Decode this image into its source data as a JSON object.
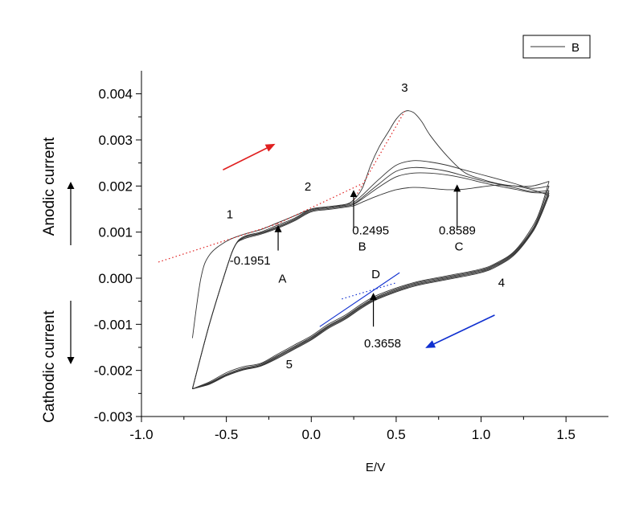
{
  "chart_data": {
    "type": "line",
    "xlabel": "E/V",
    "ylabel_anodic": "Anodic current",
    "ylabel_cathodic": "Cathodic current",
    "xlim": [
      -1.0,
      1.75
    ],
    "ylim": [
      -0.003,
      0.0045
    ],
    "xticks": [
      -1.0,
      -0.5,
      0.0,
      0.5,
      1.0,
      1.5
    ],
    "xtick_labels": [
      "-1.0",
      "-0.5",
      "0.0",
      "0.5",
      "1.0",
      "1.5"
    ],
    "yticks": [
      -0.003,
      -0.002,
      -0.001,
      0.0,
      0.001,
      0.002,
      0.003,
      0.004
    ],
    "ytick_labels": [
      "-0.003",
      "-0.002",
      "-0.001",
      "0.000",
      "0.001",
      "0.002",
      "0.003",
      "0.004"
    ],
    "legend": {
      "entries": [
        "B"
      ],
      "placement": "top-right"
    },
    "colors": {
      "curve": "#333333",
      "forward_arrow": "#e02020",
      "reverse_arrow": "#1030d0",
      "anodic_tangent": "#e02020",
      "cathodic_tangent": "#1030d0"
    },
    "series": [
      {
        "cycle": 1,
        "forward": [
          [
            -0.7,
            -0.0013
          ],
          [
            -0.65,
            0.0
          ],
          [
            -0.6,
            0.0005
          ],
          [
            -0.5,
            0.0008
          ],
          [
            -0.4,
            0.00095
          ],
          [
            -0.3,
            0.00105
          ],
          [
            -0.2,
            0.0012
          ],
          [
            -0.1,
            0.00135
          ],
          [
            0.0,
            0.0015
          ],
          [
            0.1,
            0.00155
          ],
          [
            0.2,
            0.0016
          ],
          [
            0.25,
            0.0017
          ],
          [
            0.3,
            0.00195
          ],
          [
            0.35,
            0.00245
          ],
          [
            0.4,
            0.00285
          ],
          [
            0.45,
            0.00315
          ],
          [
            0.5,
            0.00345
          ],
          [
            0.55,
            0.00362
          ],
          [
            0.6,
            0.0036
          ],
          [
            0.65,
            0.0034
          ],
          [
            0.7,
            0.0031
          ],
          [
            0.8,
            0.00265
          ],
          [
            0.9,
            0.0023
          ],
          [
            1.0,
            0.00215
          ],
          [
            1.1,
            0.00205
          ],
          [
            1.2,
            0.002
          ],
          [
            1.3,
            0.002
          ],
          [
            1.4,
            0.0021
          ]
        ],
        "reverse": [
          [
            1.4,
            0.0021
          ],
          [
            1.35,
            0.0015
          ],
          [
            1.3,
            0.0011
          ],
          [
            1.2,
            0.0006
          ],
          [
            1.1,
            0.00035
          ],
          [
            1.0,
            0.0002
          ],
          [
            0.8,
            5e-05
          ],
          [
            0.6,
            -0.0001
          ],
          [
            0.4,
            -0.00035
          ],
          [
            0.3,
            -0.00055
          ],
          [
            0.2,
            -0.0008
          ],
          [
            0.1,
            -0.001
          ],
          [
            0.0,
            -0.00125
          ],
          [
            -0.1,
            -0.00145
          ],
          [
            -0.2,
            -0.00165
          ],
          [
            -0.3,
            -0.00185
          ],
          [
            -0.4,
            -0.00192
          ],
          [
            -0.5,
            -0.00205
          ],
          [
            -0.6,
            -0.00225
          ],
          [
            -0.7,
            -0.0024
          ]
        ]
      },
      {
        "cycle": 2,
        "forward": [
          [
            -0.7,
            -0.0024
          ],
          [
            -0.6,
            -0.001
          ],
          [
            -0.5,
            0.0002
          ],
          [
            -0.45,
            0.0007
          ],
          [
            -0.4,
            0.0009
          ],
          [
            -0.3,
            0.001
          ],
          [
            -0.2,
            0.00115
          ],
          [
            -0.1,
            0.0013
          ],
          [
            0.0,
            0.0015
          ],
          [
            0.1,
            0.00155
          ],
          [
            0.2,
            0.0016
          ],
          [
            0.25,
            0.00165
          ],
          [
            0.3,
            0.0018
          ],
          [
            0.4,
            0.00215
          ],
          [
            0.5,
            0.00245
          ],
          [
            0.6,
            0.00255
          ],
          [
            0.7,
            0.00252
          ],
          [
            0.8,
            0.00245
          ],
          [
            0.9,
            0.00235
          ],
          [
            1.0,
            0.00225
          ],
          [
            1.1,
            0.00215
          ],
          [
            1.2,
            0.00205
          ],
          [
            1.3,
            0.00195
          ],
          [
            1.4,
            0.002
          ]
        ],
        "reverse": [
          [
            1.4,
            0.002
          ],
          [
            1.35,
            0.00145
          ],
          [
            1.3,
            0.00105
          ],
          [
            1.2,
            0.00058
          ],
          [
            1.1,
            0.00033
          ],
          [
            1.0,
            0.00018
          ],
          [
            0.8,
            3e-05
          ],
          [
            0.6,
            -0.00012
          ],
          [
            0.4,
            -0.00038
          ],
          [
            0.3,
            -0.00058
          ],
          [
            0.2,
            -0.00083
          ],
          [
            0.1,
            -0.00103
          ],
          [
            0.0,
            -0.00128
          ],
          [
            -0.1,
            -0.00148
          ],
          [
            -0.2,
            -0.00168
          ],
          [
            -0.3,
            -0.00187
          ],
          [
            -0.4,
            -0.00195
          ],
          [
            -0.5,
            -0.00208
          ],
          [
            -0.6,
            -0.00227
          ],
          [
            -0.7,
            -0.0024
          ]
        ]
      },
      {
        "cycle": 3,
        "forward": [
          [
            -0.7,
            -0.0024
          ],
          [
            -0.6,
            -0.001
          ],
          [
            -0.5,
            0.0002
          ],
          [
            -0.45,
            0.0007
          ],
          [
            -0.4,
            0.00088
          ],
          [
            -0.3,
            0.00098
          ],
          [
            -0.2,
            0.00112
          ],
          [
            -0.1,
            0.00128
          ],
          [
            0.0,
            0.00148
          ],
          [
            0.1,
            0.00153
          ],
          [
            0.2,
            0.00158
          ],
          [
            0.25,
            0.00162
          ],
          [
            0.3,
            0.00175
          ],
          [
            0.4,
            0.00205
          ],
          [
            0.5,
            0.00232
          ],
          [
            0.6,
            0.0024
          ],
          [
            0.7,
            0.00238
          ],
          [
            0.8,
            0.00232
          ],
          [
            0.9,
            0.00222
          ],
          [
            1.0,
            0.00212
          ],
          [
            1.1,
            0.00204
          ],
          [
            1.2,
            0.00196
          ],
          [
            1.3,
            0.00188
          ],
          [
            1.4,
            0.0019
          ]
        ],
        "reverse": [
          [
            1.4,
            0.0019
          ],
          [
            1.35,
            0.0014
          ],
          [
            1.3,
            0.00102
          ],
          [
            1.2,
            0.00056
          ],
          [
            1.1,
            0.00031
          ],
          [
            1.0,
            0.00016
          ],
          [
            0.8,
            1e-05
          ],
          [
            0.6,
            -0.00014
          ],
          [
            0.4,
            -0.0004
          ],
          [
            0.3,
            -0.0006
          ],
          [
            0.2,
            -0.00085
          ],
          [
            0.1,
            -0.00105
          ],
          [
            0.0,
            -0.0013
          ],
          [
            -0.1,
            -0.0015
          ],
          [
            -0.2,
            -0.0017
          ],
          [
            -0.3,
            -0.00189
          ],
          [
            -0.4,
            -0.00197
          ],
          [
            -0.5,
            -0.0021
          ],
          [
            -0.6,
            -0.00228
          ],
          [
            -0.7,
            -0.0024
          ]
        ]
      },
      {
        "cycle": 4,
        "forward": [
          [
            -0.7,
            -0.0024
          ],
          [
            -0.6,
            -0.001
          ],
          [
            -0.5,
            0.0002
          ],
          [
            -0.45,
            0.0007
          ],
          [
            -0.4,
            0.00087
          ],
          [
            -0.3,
            0.00097
          ],
          [
            -0.2,
            0.0011
          ],
          [
            -0.1,
            0.00126
          ],
          [
            0.0,
            0.00146
          ],
          [
            0.1,
            0.00151
          ],
          [
            0.2,
            0.00156
          ],
          [
            0.25,
            0.0016
          ],
          [
            0.3,
            0.00172
          ],
          [
            0.4,
            0.00198
          ],
          [
            0.5,
            0.0022
          ],
          [
            0.6,
            0.00228
          ],
          [
            0.7,
            0.00228
          ],
          [
            0.8,
            0.00224
          ],
          [
            0.9,
            0.00217
          ],
          [
            1.0,
            0.00208
          ],
          [
            1.1,
            0.002
          ],
          [
            1.2,
            0.00193
          ],
          [
            1.3,
            0.00186
          ],
          [
            1.4,
            0.00185
          ]
        ],
        "reverse": [
          [
            1.4,
            0.00185
          ],
          [
            1.35,
            0.00137
          ],
          [
            1.3,
            0.001
          ],
          [
            1.2,
            0.00054
          ],
          [
            1.1,
            0.00029
          ],
          [
            1.0,
            0.00014
          ],
          [
            0.8,
            -1e-05
          ],
          [
            0.6,
            -0.00016
          ],
          [
            0.4,
            -0.00042
          ],
          [
            0.3,
            -0.00062
          ],
          [
            0.2,
            -0.00087
          ],
          [
            0.1,
            -0.00107
          ],
          [
            0.0,
            -0.00132
          ],
          [
            -0.1,
            -0.00152
          ],
          [
            -0.2,
            -0.00172
          ],
          [
            -0.3,
            -0.0019
          ],
          [
            -0.4,
            -0.00198
          ],
          [
            -0.5,
            -0.00211
          ],
          [
            -0.6,
            -0.00229
          ],
          [
            -0.7,
            -0.0024
          ]
        ]
      },
      {
        "cycle": 5,
        "forward": [
          [
            -0.7,
            -0.0024
          ],
          [
            -0.6,
            -0.001
          ],
          [
            -0.5,
            0.0002
          ],
          [
            -0.45,
            0.0007
          ],
          [
            -0.4,
            0.00085
          ],
          [
            -0.3,
            0.00095
          ],
          [
            -0.2,
            0.00108
          ],
          [
            -0.1,
            0.00124
          ],
          [
            0.0,
            0.00144
          ],
          [
            0.1,
            0.00149
          ],
          [
            0.2,
            0.00154
          ],
          [
            0.25,
            0.00157
          ],
          [
            0.3,
            0.00165
          ],
          [
            0.4,
            0.0018
          ],
          [
            0.5,
            0.00192
          ],
          [
            0.6,
            0.00197
          ],
          [
            0.7,
            0.00195
          ],
          [
            0.8,
            0.00192
          ],
          [
            0.9,
            0.00193
          ],
          [
            1.0,
            0.00198
          ],
          [
            1.1,
            0.00202
          ],
          [
            1.2,
            0.002
          ],
          [
            1.3,
            0.00192
          ],
          [
            1.4,
            0.0018
          ]
        ],
        "reverse": [
          [
            1.4,
            0.0018
          ],
          [
            1.35,
            0.00134
          ],
          [
            1.3,
            0.00098
          ],
          [
            1.2,
            0.00052
          ],
          [
            1.1,
            0.00027
          ],
          [
            1.0,
            0.00012
          ],
          [
            0.8,
            -3e-05
          ],
          [
            0.6,
            -0.00018
          ],
          [
            0.4,
            -0.00044
          ],
          [
            0.3,
            -0.00064
          ],
          [
            0.2,
            -0.00089
          ],
          [
            0.1,
            -0.00109
          ],
          [
            0.0,
            -0.00134
          ],
          [
            -0.1,
            -0.00154
          ],
          [
            -0.2,
            -0.00174
          ],
          [
            -0.3,
            -0.00191
          ],
          [
            -0.4,
            -0.00199
          ],
          [
            -0.5,
            -0.00212
          ],
          [
            -0.6,
            -0.0023
          ],
          [
            -0.7,
            -0.0024
          ]
        ]
      }
    ],
    "tangents": [
      {
        "color": "red",
        "style": "dotted",
        "points": [
          [
            -0.9,
            0.00035
          ],
          [
            -0.2,
            0.00118
          ]
        ]
      },
      {
        "color": "red",
        "style": "dotted",
        "points": [
          [
            -0.2,
            0.00118
          ],
          [
            0.3,
            0.00205
          ]
        ]
      },
      {
        "color": "red",
        "style": "dotted",
        "points": [
          [
            0.25,
            0.0017
          ],
          [
            0.55,
            0.00362
          ]
        ]
      },
      {
        "color": "blue",
        "style": "dotted",
        "points": [
          [
            0.18,
            -0.00045
          ],
          [
            0.5,
            -0.0001
          ]
        ]
      },
      {
        "color": "blue",
        "style": "solid",
        "points": [
          [
            0.05,
            -0.00105
          ],
          [
            0.52,
            0.00012
          ]
        ]
      }
    ],
    "annotations": [
      {
        "text": "1",
        "x": -0.48,
        "y": 0.0013
      },
      {
        "text": "2",
        "x": -0.02,
        "y": 0.0019
      },
      {
        "text": "3",
        "x": 0.55,
        "y": 0.00405
      },
      {
        "text": "4",
        "x": 1.12,
        "y": -0.00018
      },
      {
        "text": "5",
        "x": -0.13,
        "y": -0.00195
      },
      {
        "text": "-0.1951",
        "x": -0.36,
        "y": 0.0003
      },
      {
        "text": "A",
        "x": -0.17,
        "y": -0.0001
      },
      {
        "text": "0.2495",
        "x": 0.35,
        "y": 0.00095
      },
      {
        "text": "B",
        "x": 0.3,
        "y": 0.0006
      },
      {
        "text": "0.8589",
        "x": 0.86,
        "y": 0.00095
      },
      {
        "text": "C",
        "x": 0.87,
        "y": 0.0006
      },
      {
        "text": "D",
        "x": 0.38,
        "y": 0.0
      },
      {
        "text": "0.3658",
        "x": 0.42,
        "y": -0.0015
      }
    ],
    "marker_arrows": [
      {
        "label": "A",
        "x": -0.1951,
        "from_y": 0.0006,
        "to_y": 0.00112
      },
      {
        "label": "B",
        "x": 0.2495,
        "from_y": 0.0011,
        "to_y": 0.00188
      },
      {
        "label": "C",
        "x": 0.8589,
        "from_y": 0.0011,
        "to_y": 0.002
      },
      {
        "label": "D",
        "x": 0.3658,
        "from_y": -0.00105,
        "to_y": -0.00035
      }
    ],
    "direction_arrows": [
      {
        "name": "forward",
        "color": "red",
        "from": [
          -0.52,
          0.00235
        ],
        "to": [
          -0.22,
          0.0029
        ]
      },
      {
        "name": "reverse",
        "color": "blue",
        "from": [
          1.08,
          -0.0008
        ],
        "to": [
          0.68,
          -0.0015
        ]
      }
    ]
  }
}
